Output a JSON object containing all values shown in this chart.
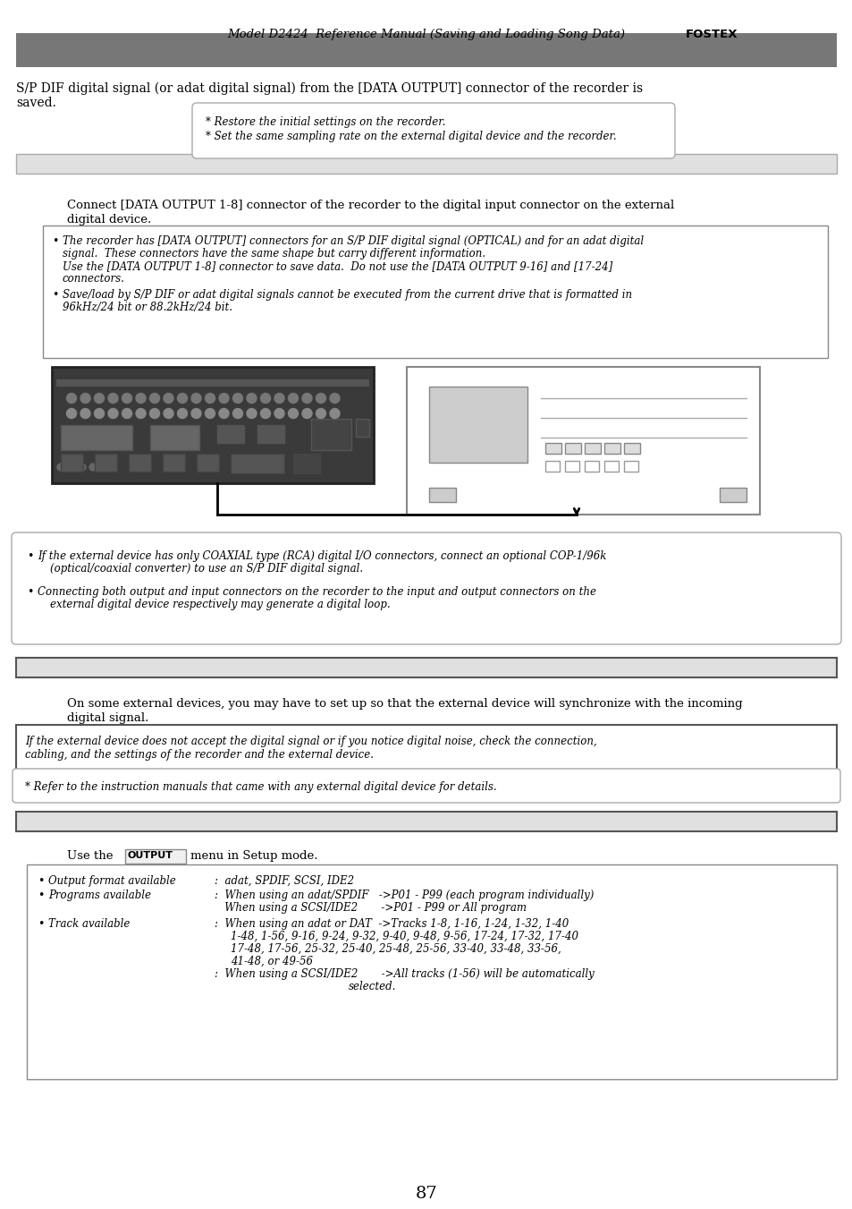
{
  "page_title": "Model D2424  Reference Manual (Saving and Loading Song Data)",
  "fostex_logo": "FOSTEX",
  "section1_body_line1": "S/P DIF digital signal (or adat digital signal) from the [DATA OUTPUT] connector of the recorder is",
  "section1_body_line2": "saved.",
  "section1_note_line1": "* Restore the initial settings on the recorder.",
  "section1_note_line2": "* Set the same sampling rate on the external digital device and the recorder.",
  "section2_body_line1": "Connect [DATA OUTPUT 1-8] connector of the recorder to the digital input connector on the external",
  "section2_body_line2": "digital device.",
  "bullet2_1_line1": "The recorder has [DATA OUTPUT] connectors for an S/P DIF digital signal (OPTICAL) and for an adat digital",
  "bullet2_1_line2": "signal.  These connectors have the same shape but carry different information.",
  "bullet2_1_line3": "Use the [DATA OUTPUT 1-8] connector to save data.  Do not use the [DATA OUTPUT 9-16] and [17-24]",
  "bullet2_1_line4": "connectors.",
  "bullet2_2_line1": "Save/load by S/P DIF or adat digital signals cannot be executed from the current drive that is formatted in",
  "bullet2_2_line2": "96kHz/24 bit or 88.2kHz/24 bit.",
  "bullet3_1_line1": "If the external device has only COAXIAL type (RCA) digital I/O connectors, connect an optional COP-1/96k",
  "bullet3_1_line2": "(optical/coaxial converter) to use an S/P DIF digital signal.",
  "bullet3_2_line1": "Connecting both output and input connectors on the recorder to the input and output connectors on the",
  "bullet3_2_line2": "external digital device respectively may generate a digital loop.",
  "section4_body_line1": "On some external devices, you may have to set up so that the external device will synchronize with the incoming",
  "section4_body_line2": "digital signal.",
  "note4_1_line1": "If the external device does not accept the digital signal or if you notice digital noise, check the connection,",
  "note4_1_line2": "cabling, and the settings of the recorder and the external device.",
  "note4_2": "* Refer to the instruction manuals that came with any external digital device for details.",
  "section5_use_the": "Use the",
  "section5_menu": "OUTPUT",
  "section5_menu_rest": "menu in Setup mode.",
  "page_number": "87",
  "bg_color": "#ffffff",
  "gray_bar_color": "#777777",
  "light_bar_color": "#e0e0e0",
  "dark_bar_color": "#444444"
}
